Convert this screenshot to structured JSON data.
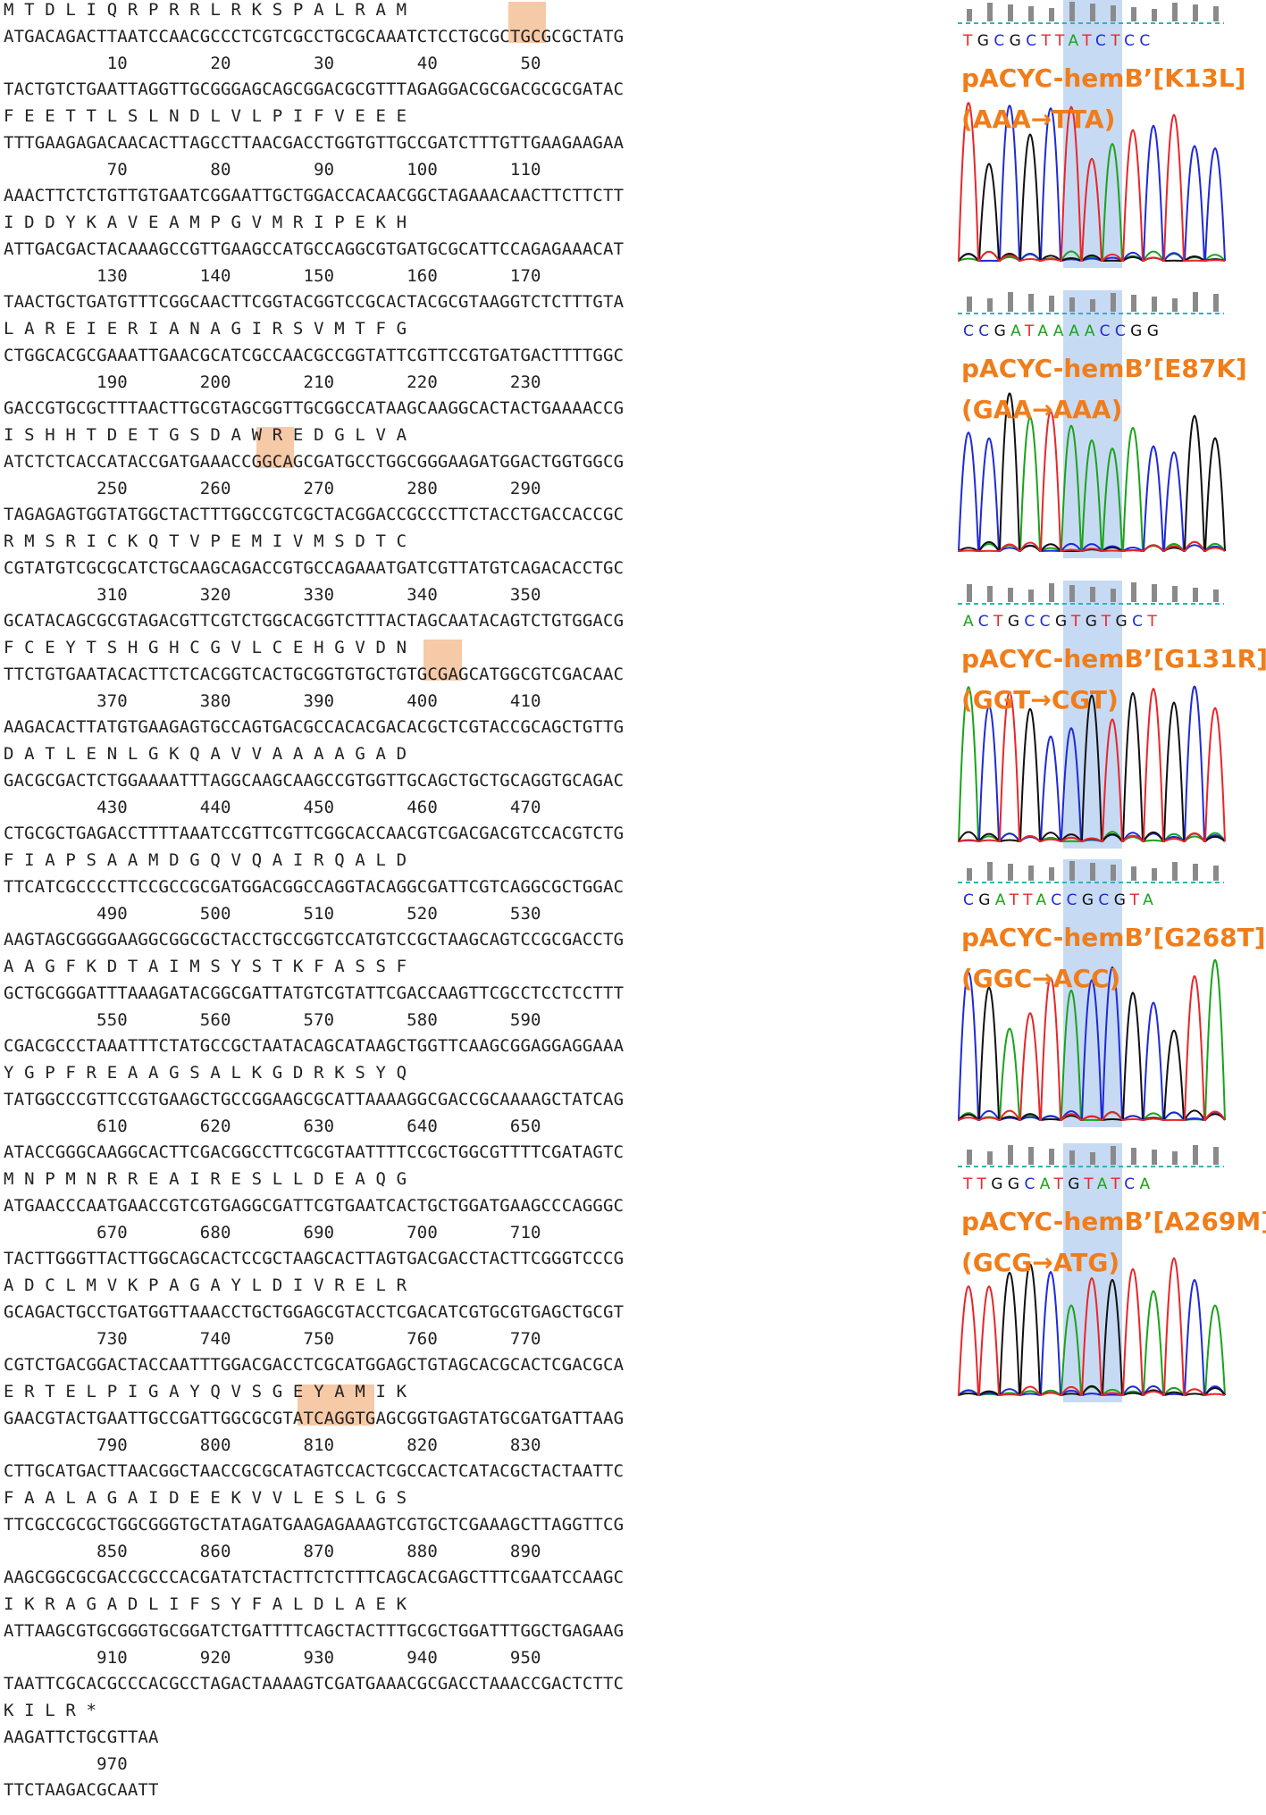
{
  "sequence": {
    "blocks": [
      {
        "aa": "M T D L I Q R P R R L R K S P A L R A M",
        "top": "ATGACAGACTTAATCCAACGCCCTCGTCGCCTGCGCAAATCTCCTGCGCTGCGCGCTATG",
        "nums": "          10        20        30        40        50",
        "bottom": "TACTGTCTGAATTAGGTTGCGGGAGCAGCGGACGCGTTTAGAGGACGCGACGCGCGATAC"
      },
      {
        "aa": "F E E T T L S L N D L V L P I F V E E E",
        "top": "TTTGAAGAGACAACACTTAGCCTTAACGACCTGGTGTTGCCGATCTTTGTTGAAGAAGAA",
        "nums": "          70        80        90       100       110",
        "bottom": "AAACTTCTCTGTTGTGAATCGGAATTGCTGGACCACAACGGCTAGAAACAACTTCTTCTT"
      },
      {
        "aa": "I D D Y K A V E A M P G V M R I P E K H",
        "top": "ATTGACGACTACAAAGCCGTTGAAGCCATGCCAGGCGTGATGCGCATTCCAGAGAAACAT",
        "nums": "         130       140       150       160       170",
        "bottom": "TAACTGCTGATGTTTCGGCAACTTCGGTACGGTCCGCACTACGCGTAAGGTCTCTTTGTA"
      },
      {
        "aa": "L A R E I E R I A N A G I R S V M T F G",
        "top": "CTGGCACGCGAAATTGAACGCATCGCCAACGCCGGTATTCGTTCCGTGATGACTTTTGGC",
        "nums": "         190       200       210       220       230",
        "bottom": "GACCGTGCGCTTTAACTTGCGTAGCGGTTGCGGCCATAAGCAAGGCACTACTGAAAACCG"
      },
      {
        "aa": "I S H H T D E T G S D A W R E D G L V A",
        "top": "ATCTCTCACCATACCGATGAAACCGGCAGCGATGCCTGGCGGGAAGATGGACTGGTGGCG",
        "nums": "         250       260       270       280       290",
        "bottom": "TAGAGAGTGGTATGGCTACTTTGGCCGTCGCTACGGACCGCCCTTCTACCTGACCACCGC"
      },
      {
        "aa": "R M S R I C K Q T V P E M I V M S D T C",
        "top": "CGTATGTCGCGCATCTGCAAGCAGACCGTGCCAGAAATGATCGTTATGTCAGACACCTGC",
        "nums": "         310       320       330       340       350",
        "bottom": "GCATACAGCGCGTAGACGTTCGTCTGGCACGGTCTTTACTAGCAATACAGTCTGTGGACG"
      },
      {
        "aa": "F C E Y T S H G H C G V L C E H G V D N",
        "top": "TTCTGTGAATACACTTCTCACGGTCACTGCGGTGTGCTGTGCGAGCATGGCGTCGACAAC",
        "nums": "         370       380       390       400       410",
        "bottom": "AAGACACTTATGTGAAGAGTGCCAGTGACGCCACACGACACGCTCGTACCGCAGCTGTTG"
      },
      {
        "aa": "D A T L E N L G K Q A V V A A A A G A D",
        "top": "GACGCGACTCTGGAAAATTTAGGCAAGCAAGCCGTGGTTGCAGCTGCTGCAGGTGCAGAC",
        "nums": "         430       440       450       460       470",
        "bottom": "CTGCGCTGAGACCTTTTAAATCCGTTCGTTCGGCACCAACGTCGACGACGTCCACGTCTG"
      },
      {
        "aa": "F I A P S A A M D G Q V Q A I R Q A L D",
        "top": "TTCATCGCCCCTTCCGCCGCGATGGACGGCCAGGTACAGGCGATTCGTCAGGCGCTGGAC",
        "nums": "         490       500       510       520       530",
        "bottom": "AAGTAGCGGGGAAGGCGGCGCTACCTGCCGGTCCATGTCCGCTAAGCAGTCCGCGACCTG"
      },
      {
        "aa": "A A G F K D T A I M S Y S T K F A S S F",
        "top": "GCTGCGGGATTTAAAGATACGGCGATTATGTCGTATTCGACCAAGTTCGCCTCCTCCTTT",
        "nums": "         550       560       570       580       590",
        "bottom": "CGACGCCCTAAATTTCTATGCCGCTAATACAGCATAAGCTGGTTCAAGCGGAGGAGGAAA"
      },
      {
        "aa": "Y G P F R E A A G S A L K G D R K S Y Q",
        "top": "TATGGCCCGTTCCGTGAAGCTGCCGGAAGCGCATTAAAAGGCGACCGCAAAAGCTATCAG",
        "nums": "         610       620       630       640       650",
        "bottom": "ATACCGGGCAAGGCACTTCGACGGCCTTCGCGTAATTTTCCGCTGGCGTTTTCGATAGTC"
      },
      {
        "aa": "M N P M N R R E A I R E S L L D E A Q G",
        "top": "ATGAACCCAATGAACCGTCGTGAGGCGATTCGTGAATCACTGCTGGATGAAGCCCAGGGC",
        "nums": "         670       680       690       700       710",
        "bottom": "TACTTGGGTTACTTGGCAGCACTCCGCTAAGCACTTAGTGACGACCTACTTCGGGTCCCG"
      },
      {
        "aa": "A D C L M V K P A G A Y L D I V R E L R",
        "top": "GCAGACTGCCTGATGGTTAAACCTGCTGGAGCGTACCTCGACATCGTGCGTGAGCTGCGT",
        "nums": "         730       740       750       760       770",
        "bottom": "CGTCTGACGGACTACCAATTTGGACGACCTCGCATGGAGCTGTAGCACGCACTCGACGCA"
      },
      {
        "aa": "E R T E L P I G A Y Q V S G E Y A M I K",
        "top": "GAACGTACTGAATTGCCGATTGGCGCGTATCAGGTGAGCGGTGAGTATGCGATGATTAAG",
        "nums": "         790       800       810       820       830",
        "bottom": "CTTGCATGACTTAACGGCTAACCGCGCATAGTCCACTCGCCACTCATACGCTACTAATTC"
      },
      {
        "aa": "F A A L A G A I D E E K V V L E S L G S",
        "top": "TTCGCCGCGCTGGCGGGTGCTATAGATGAAGAGAAAGTCGTGCTCGAAAGCTTAGGTTCG",
        "nums": "         850       860       870       880       890",
        "bottom": "AAGCGGCGCGACCGCCCACGATATCTACTTCTCTTTCAGCACGAGCTTTCGAATCCAAGC"
      },
      {
        "aa": "I K R A G A D L I F S Y F A L D L A E K",
        "top": "ATTAAGCGTGCGGGTGCGGATCTGATTTTCAGCTACTTTGCGCTGGATTTGGCTGAGAAG",
        "nums": "         910       920       930       940       950",
        "bottom": "TAATTCGCACGCCCACGCCTAGACTAAAAGTCGATGAAACGCGACCTAAACCGACTCTTC"
      },
      {
        "aa": "K I L R *",
        "top": "AAGATTCTGCGTTAA",
        "nums": "         970",
        "bottom": "TTCTAAGACGCAATT"
      }
    ]
  },
  "chromatograms": [
    {
      "bases": "TGCGCTTATCTCC",
      "name": "pACYC-hemB’[K13L]",
      "change": "(AAA→TTA)"
    },
    {
      "bases": "CCGATAAAACCGG",
      "name": "pACYC-hemB’[E87K]",
      "change": "(GAA→AAA)"
    },
    {
      "bases": "ACTGCCGTGTGCT",
      "name": "pACYC-hemB’[G131R]",
      "change": "(GGT→CGT)"
    },
    {
      "bases": "CGATTACCGCGTA",
      "name": "pACYC-hemB’[G268T]",
      "change": "(GGC→ACC)"
    },
    {
      "bases": "TTGGCATGTATCA",
      "name": "pACYC-hemB’[A269M]",
      "change": "(GCG→ATG)"
    }
  ],
  "colors": {
    "highlight": "#f6c9a7",
    "label": "#f07d1a",
    "shade": "#b4cdf0",
    "A": "#1aa31a",
    "C": "#1f2ad8",
    "G": "#111111",
    "T": "#e8262a"
  }
}
